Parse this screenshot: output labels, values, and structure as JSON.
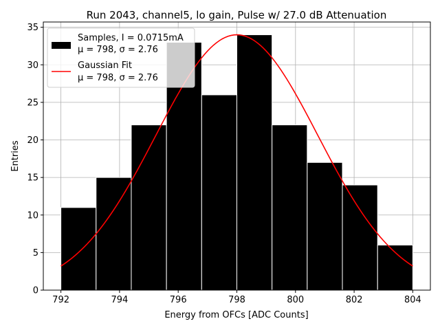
{
  "chart_data": {
    "type": "bar",
    "title": "Run 2043, channel5, lo gain, Pulse w/ 27.0 dB Attenuation",
    "xlabel": "Energy from OFCs [ADC Counts]",
    "ylabel": "Entries",
    "xlim": [
      791.4,
      804.6
    ],
    "ylim": [
      0,
      35.7
    ],
    "xticks": [
      792,
      794,
      796,
      798,
      800,
      802,
      804
    ],
    "yticks": [
      0,
      5,
      10,
      15,
      20,
      25,
      30,
      35
    ],
    "grid": true,
    "legend_position": "top-left",
    "histogram": {
      "name": "Samples, I = 0.0715mA",
      "stats": "μ = 798, σ = 2.76",
      "color": "#000000",
      "edge_color": "#ffffff",
      "bin_edges": [
        792,
        793.2,
        794.4,
        795.6,
        796.8,
        798,
        799.2,
        800.4,
        801.6,
        802.8,
        804
      ],
      "counts": [
        11,
        15,
        22,
        33,
        26,
        34,
        22,
        17,
        14,
        6
      ]
    },
    "fit": {
      "name": "Gaussian Fit",
      "stats": "μ = 798, σ = 2.76",
      "color": "#ff0000",
      "mean": 798,
      "sigma": 2.76,
      "amplitude": 34,
      "x_range": [
        792,
        804
      ]
    }
  }
}
